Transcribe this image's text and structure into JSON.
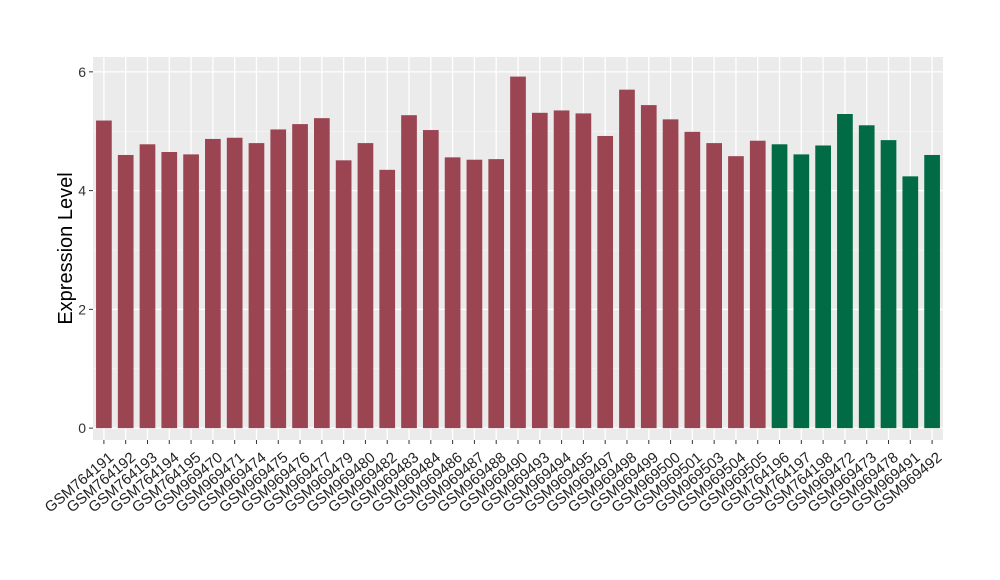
{
  "chart_data": {
    "type": "bar",
    "xlabel": "",
    "ylabel": "Expression Level",
    "ylim": [
      -0.2,
      6.25
    ],
    "y_ticks": [
      "0",
      "2",
      "4",
      "6"
    ],
    "grid": true,
    "background": "#EBEBEB",
    "colors": {
      "group1": "#9B4452",
      "group2": "#006B45"
    },
    "categories": [
      "GSM764191",
      "GSM764192",
      "GSM764193",
      "GSM764194",
      "GSM764195",
      "GSM969470",
      "GSM969471",
      "GSM969474",
      "GSM969475",
      "GSM969476",
      "GSM969477",
      "GSM969479",
      "GSM969480",
      "GSM969482",
      "GSM969483",
      "GSM969484",
      "GSM969486",
      "GSM969487",
      "GSM969488",
      "GSM969490",
      "GSM969493",
      "GSM969494",
      "GSM969495",
      "GSM969497",
      "GSM969498",
      "GSM969499",
      "GSM969500",
      "GSM969501",
      "GSM969503",
      "GSM969504",
      "GSM969505",
      "GSM764196",
      "GSM764197",
      "GSM764198",
      "GSM969472",
      "GSM969473",
      "GSM969478",
      "GSM969491",
      "GSM969492"
    ],
    "values": [
      5.18,
      4.6,
      4.78,
      4.65,
      4.61,
      4.87,
      4.89,
      4.8,
      5.03,
      5.12,
      5.22,
      4.51,
      4.8,
      4.35,
      5.27,
      5.02,
      4.56,
      4.52,
      4.53,
      5.92,
      5.31,
      5.35,
      5.3,
      4.92,
      5.7,
      5.44,
      5.2,
      4.99,
      4.8,
      4.58,
      4.84,
      4.78,
      4.61,
      4.76,
      5.29,
      5.1,
      4.85,
      4.24,
      4.6
    ],
    "groups": [
      "group1",
      "group1",
      "group1",
      "group1",
      "group1",
      "group1",
      "group1",
      "group1",
      "group1",
      "group1",
      "group1",
      "group1",
      "group1",
      "group1",
      "group1",
      "group1",
      "group1",
      "group1",
      "group1",
      "group1",
      "group1",
      "group1",
      "group1",
      "group1",
      "group1",
      "group1",
      "group1",
      "group1",
      "group1",
      "group1",
      "group1",
      "group2",
      "group2",
      "group2",
      "group2",
      "group2",
      "group2",
      "group2",
      "group2"
    ]
  }
}
